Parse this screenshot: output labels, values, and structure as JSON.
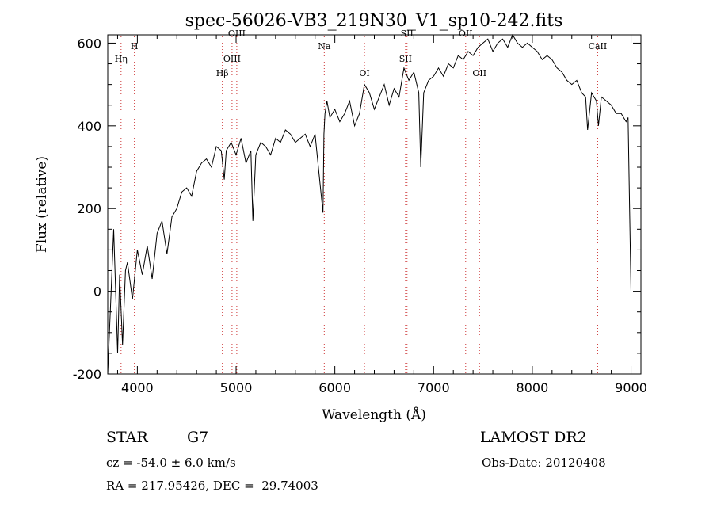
{
  "chart_data": {
    "type": "line",
    "title": "spec-56026-VB3_219N30_V1_sp10-242.fits",
    "xlabel": "Wavelength (Å)",
    "ylabel": "Flux (relative)",
    "xlim": [
      3700,
      9100
    ],
    "ylim": [
      -200,
      620
    ],
    "x_ticks": [
      4000,
      5000,
      6000,
      7000,
      8000,
      9000
    ],
    "y_ticks": [
      -200,
      0,
      200,
      400,
      600
    ],
    "grid": false,
    "line_color": "#000000",
    "marker_color": "#cc3333",
    "series": [
      {
        "x": [
          3700,
          3760,
          3800,
          3820,
          3850,
          3880,
          3900,
          3950,
          4000,
          4050,
          4100,
          4150,
          4200,
          4250,
          4300,
          4350,
          4400,
          4450,
          4500,
          4550,
          4600,
          4650,
          4700,
          4750,
          4800,
          4850,
          4880,
          4900,
          4950,
          5000,
          5050,
          5100,
          5150,
          5170,
          5200,
          5250,
          5300,
          5350,
          5400,
          5450,
          5500,
          5550,
          5600,
          5650,
          5700,
          5750,
          5800,
          5850,
          5880,
          5890,
          5900,
          5920,
          5950,
          6000,
          6050,
          6100,
          6150,
          6200,
          6250,
          6300,
          6350,
          6400,
          6450,
          6500,
          6550,
          6600,
          6650,
          6700,
          6750,
          6800,
          6850,
          6870,
          6900,
          6950,
          7000,
          7050,
          7100,
          7150,
          7200,
          7250,
          7300,
          7350,
          7400,
          7450,
          7500,
          7550,
          7600,
          7650,
          7700,
          7750,
          7800,
          7850,
          7900,
          7950,
          8000,
          8050,
          8100,
          8150,
          8200,
          8250,
          8300,
          8350,
          8400,
          8450,
          8500,
          8540,
          8560,
          8600,
          8650,
          8670,
          8700,
          8750,
          8800,
          8850,
          8900,
          8950,
          8970,
          8985,
          9000
        ],
        "y": [
          -200,
          150,
          -150,
          40,
          -130,
          50,
          70,
          -20,
          100,
          40,
          110,
          30,
          140,
          170,
          90,
          180,
          200,
          240,
          250,
          230,
          290,
          310,
          320,
          300,
          350,
          340,
          270,
          340,
          360,
          330,
          370,
          310,
          340,
          170,
          330,
          360,
          350,
          330,
          370,
          360,
          390,
          380,
          360,
          370,
          380,
          350,
          380,
          260,
          190,
          380,
          430,
          460,
          420,
          440,
          410,
          430,
          460,
          400,
          430,
          500,
          480,
          440,
          470,
          500,
          450,
          490,
          470,
          540,
          510,
          530,
          480,
          300,
          480,
          510,
          520,
          540,
          520,
          550,
          540,
          570,
          560,
          580,
          570,
          590,
          600,
          610,
          580,
          600,
          610,
          590,
          620,
          600,
          590,
          600,
          590,
          580,
          560,
          570,
          560,
          540,
          530,
          510,
          500,
          510,
          480,
          470,
          390,
          480,
          460,
          400,
          470,
          460,
          450,
          430,
          430,
          410,
          420,
          200,
          0
        ]
      }
    ],
    "line_markers": [
      {
        "label": "Hη",
        "x": 3835,
        "row": 2
      },
      {
        "label": "H",
        "x": 3970,
        "row": 1
      },
      {
        "label": "Hβ",
        "x": 4861,
        "row": 3
      },
      {
        "label": "OIII",
        "x": 4959,
        "row": 2
      },
      {
        "label": "OIII",
        "x": 5007,
        "row": 0
      },
      {
        "label": "Na",
        "x": 5893,
        "row": 1
      },
      {
        "label": "OI",
        "x": 6300,
        "row": 3
      },
      {
        "label": "SII",
        "x": 6716,
        "row": 2
      },
      {
        "label": "SII",
        "x": 6731,
        "row": 0
      },
      {
        "label": "OII",
        "x": 7325,
        "row": 0
      },
      {
        "label": "OII",
        "x": 7465,
        "row": 3
      },
      {
        "label": "CaII",
        "x": 8662,
        "row": 1
      }
    ]
  },
  "info": {
    "object_class": "STAR",
    "subclass": "G7",
    "survey": "LAMOST DR2",
    "redshift_line": "cz = -54.0 ± 6.0 km/s",
    "obs_date": "Obs-Date: 20120408",
    "coords": "RA = 217.95426, DEC =  29.74003"
  }
}
